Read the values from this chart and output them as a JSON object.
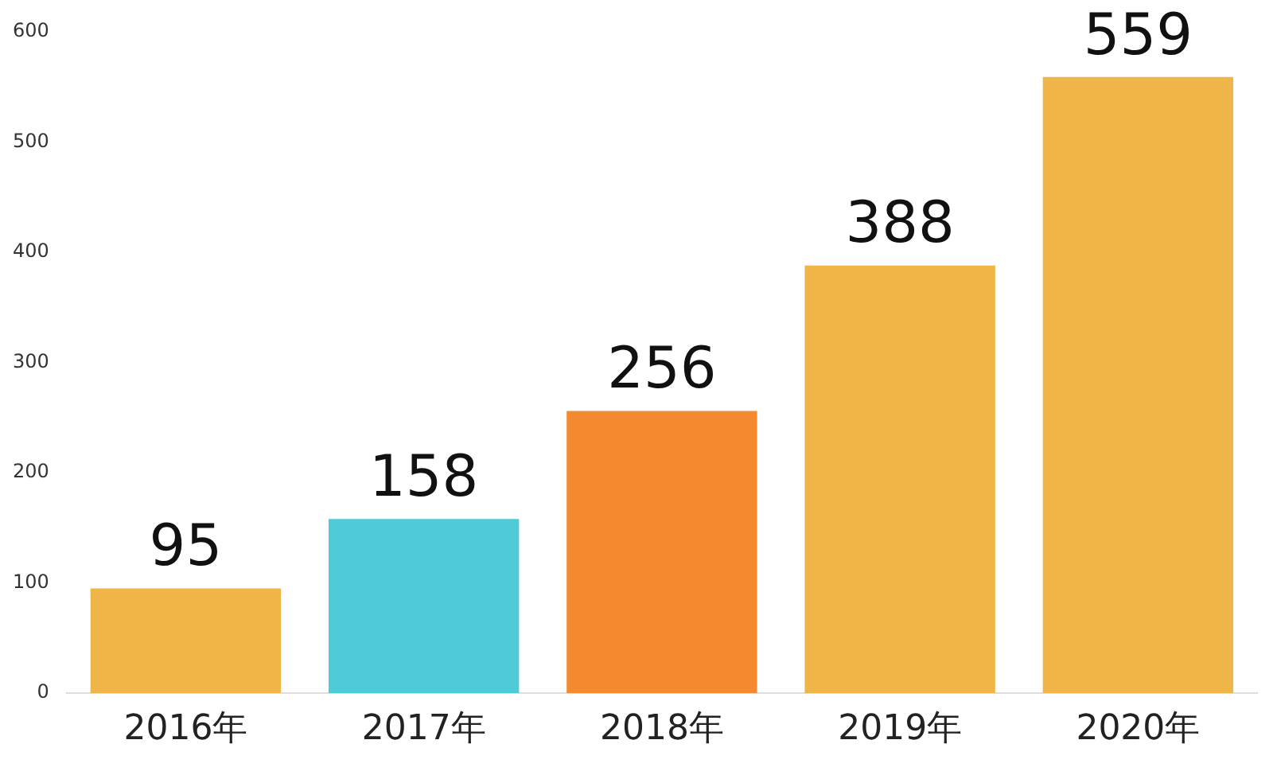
{
  "chart_data": {
    "type": "bar",
    "categories": [
      "2016年",
      "2017年",
      "2018年",
      "2019年",
      "2020年"
    ],
    "values": [
      95,
      158,
      256,
      388,
      559
    ],
    "colors": [
      "#f0b548",
      "#4ecbd6",
      "#f48a30",
      "#f0b548",
      "#f0b548"
    ],
    "ylim": [
      0,
      600
    ],
    "yticks": [
      0,
      100,
      200,
      300,
      400,
      500,
      600
    ],
    "grid": false,
    "data_labels": true
  }
}
